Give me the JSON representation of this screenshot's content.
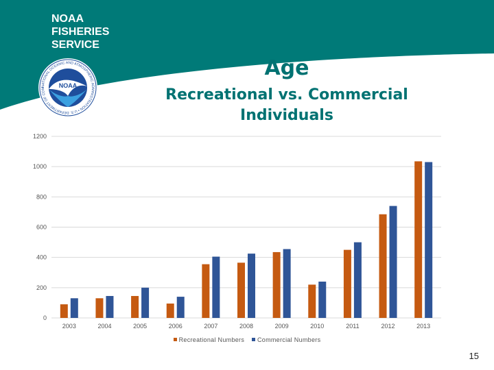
{
  "brand": {
    "line1": "NOAA",
    "line2": "FISHERIES",
    "line3": "SERVICE"
  },
  "logo": {
    "text": "NOAA",
    "ring_text": "NATIONAL OCEANIC AND ATMOSPHERIC ADMINISTRATION • U.S. DEPARTMENT OF COMMERCE •"
  },
  "title": {
    "main": "Age",
    "line1": "Recreational vs. Commercial",
    "line2": "Individuals"
  },
  "page_number": "15",
  "colors": {
    "header": "#007a78",
    "recreational": "#c55a11",
    "commercial": "#2f5597",
    "title": "#007272"
  },
  "chart_data": {
    "type": "bar",
    "categories": [
      "2003",
      "2004",
      "2005",
      "2006",
      "2007",
      "2008",
      "2009",
      "2010",
      "2011",
      "2012",
      "2013"
    ],
    "series": [
      {
        "name": "Recreational Numbers",
        "values": [
          90,
          130,
          145,
          95,
          355,
          365,
          435,
          220,
          450,
          685,
          1035
        ]
      },
      {
        "name": "Commercial Numbers",
        "values": [
          130,
          145,
          200,
          140,
          405,
          425,
          455,
          240,
          500,
          740,
          1030
        ]
      }
    ],
    "y_ticks": [
      "0",
      "200",
      "400",
      "600",
      "800",
      "1000",
      "1200"
    ],
    "ylim": [
      0,
      1200
    ],
    "grid": true,
    "legend": "bottom-center",
    "title": "",
    "xlabel": "",
    "ylabel": ""
  }
}
